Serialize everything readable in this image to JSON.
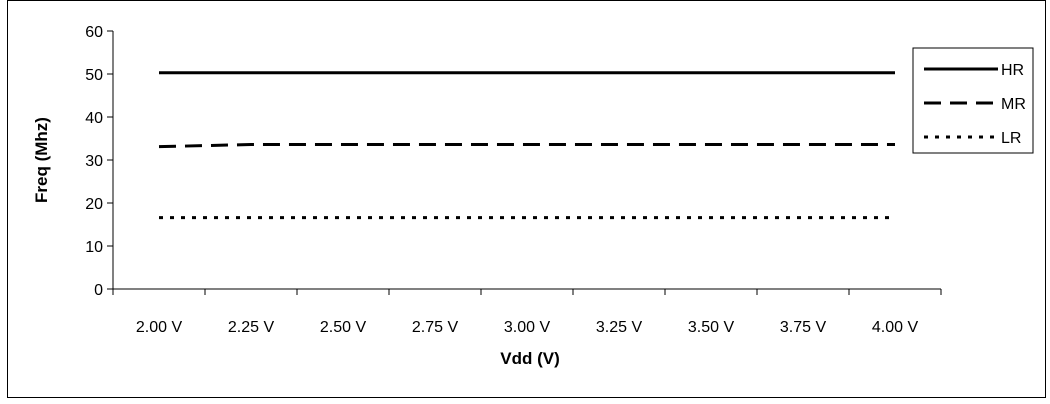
{
  "chart_data": {
    "type": "line",
    "title": "",
    "xlabel": "Vdd (V)",
    "ylabel": "Freq (Mhz)",
    "ylim": [
      0,
      60
    ],
    "yticks": [
      "0",
      "10",
      "20",
      "30",
      "40",
      "50",
      "60"
    ],
    "categories": [
      "2.00 V",
      "2.25 V",
      "2.50 V",
      "2.75 V",
      "3.00 V",
      "3.25 V",
      "3.50 V",
      "3.75 V",
      "4.00 V"
    ],
    "grid": false,
    "legend_position": "right",
    "series": [
      {
        "name": "HR",
        "style": "solid",
        "color": "#000000",
        "values": [
          50.3,
          50.3,
          50.3,
          50.3,
          50.3,
          50.3,
          50.3,
          50.3,
          50.3
        ]
      },
      {
        "name": "MR",
        "style": "dashed",
        "color": "#000000",
        "values": [
          33.1,
          33.6,
          33.6,
          33.6,
          33.6,
          33.6,
          33.6,
          33.6,
          33.6
        ]
      },
      {
        "name": "LR",
        "style": "dotted",
        "color": "#000000",
        "values": [
          16.6,
          16.6,
          16.6,
          16.6,
          16.6,
          16.6,
          16.6,
          16.6,
          16.6
        ]
      }
    ]
  }
}
